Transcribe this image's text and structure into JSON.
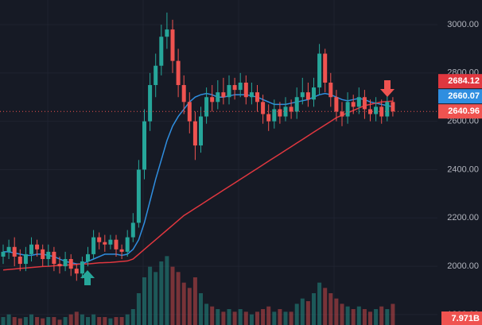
{
  "chart_data": {
    "type": "candlestick",
    "open": [
      2040,
      2060,
      2080,
      2040,
      2010,
      2050,
      2090,
      2070,
      2030,
      2060,
      2010,
      2000,
      2030,
      1990,
      1970,
      2020,
      2050,
      2120,
      2100,
      2090,
      2110,
      2070,
      2060,
      2120,
      2180,
      2400,
      2600,
      2750,
      2830,
      2950,
      2980,
      2850,
      2750,
      2680,
      2600,
      2500,
      2620,
      2700,
      2680,
      2720,
      2700,
      2750,
      2730,
      2760,
      2700,
      2720,
      2680,
      2630,
      2600,
      2650,
      2620,
      2660,
      2640,
      2700,
      2720,
      2690,
      2740,
      2880,
      2760,
      2700,
      2640,
      2620,
      2680,
      2660,
      2700,
      2650,
      2630,
      2660,
      2620,
      2680
    ],
    "high": [
      2090,
      2110,
      2120,
      2070,
      2080,
      2120,
      2110,
      2090,
      2090,
      2080,
      2040,
      2060,
      2050,
      2010,
      2040,
      2080,
      2150,
      2140,
      2130,
      2130,
      2130,
      2090,
      2150,
      2220,
      2440,
      2650,
      2800,
      2880,
      3000,
      3050,
      3020,
      2900,
      2790,
      2720,
      2640,
      2660,
      2740,
      2750,
      2770,
      2780,
      2790,
      2780,
      2800,
      2790,
      2760,
      2750,
      2710,
      2670,
      2690,
      2680,
      2700,
      2690,
      2740,
      2780,
      2760,
      2780,
      2920,
      2900,
      2800,
      2730,
      2680,
      2720,
      2710,
      2740,
      2730,
      2690,
      2700,
      2690,
      2720,
      2700
    ],
    "low": [
      2010,
      2030,
      2000,
      1980,
      1980,
      2020,
      2040,
      2000,
      2000,
      1980,
      1970,
      1980,
      1960,
      1940,
      1950,
      2000,
      2030,
      2070,
      2060,
      2070,
      2040,
      2030,
      2040,
      2100,
      2160,
      2360,
      2560,
      2700,
      2790,
      2900,
      2800,
      2700,
      2630,
      2550,
      2440,
      2470,
      2590,
      2640,
      2650,
      2670,
      2670,
      2690,
      2700,
      2670,
      2670,
      2640,
      2590,
      2560,
      2570,
      2590,
      2600,
      2610,
      2610,
      2670,
      2660,
      2660,
      2710,
      2720,
      2660,
      2600,
      2580,
      2590,
      2630,
      2630,
      2610,
      2600,
      2600,
      2590,
      2600,
      2620
    ],
    "close": [
      2060,
      2080,
      2040,
      2010,
      2050,
      2090,
      2070,
      2030,
      2060,
      2010,
      2000,
      2030,
      1990,
      1970,
      2020,
      2050,
      2120,
      2100,
      2090,
      2110,
      2070,
      2060,
      2120,
      2180,
      2400,
      2600,
      2750,
      2830,
      2950,
      2980,
      2850,
      2750,
      2680,
      2600,
      2500,
      2620,
      2700,
      2680,
      2720,
      2700,
      2750,
      2730,
      2760,
      2700,
      2720,
      2680,
      2630,
      2600,
      2650,
      2620,
      2660,
      2640,
      2700,
      2720,
      2690,
      2740,
      2880,
      2760,
      2700,
      2640,
      2620,
      2680,
      2660,
      2700,
      2650,
      2630,
      2660,
      2620,
      2680,
      2640.96
    ],
    "up_color": "#26a69a",
    "down_color": "#ef5350",
    "moving_averages": [
      {
        "color": "#2f8ee0",
        "values": [
          2060,
          2060,
          2055,
          2050,
          2045,
          2045,
          2050,
          2050,
          2045,
          2040,
          2030,
          2020,
          2015,
          2010,
          2010,
          2020,
          2030,
          2040,
          2050,
          2050,
          2050,
          2045,
          2050,
          2070,
          2110,
          2180,
          2270,
          2360,
          2440,
          2520,
          2580,
          2620,
          2650,
          2680,
          2700,
          2710,
          2715,
          2710,
          2700,
          2700,
          2705,
          2710,
          2710,
          2710,
          2705,
          2700,
          2690,
          2680,
          2670,
          2670,
          2670,
          2675,
          2680,
          2685,
          2690,
          2700,
          2710,
          2715,
          2710,
          2700,
          2690,
          2685,
          2690,
          2695,
          2690,
          2680,
          2675,
          2670,
          2665,
          2660.07
        ]
      },
      {
        "color": "#e0373f",
        "values": [
          1985,
          1987,
          1989,
          1991,
          1993,
          1995,
          1997,
          1999,
          2000,
          2002,
          2004,
          2005,
          2006,
          2008,
          2010,
          2010,
          2012,
          2014,
          2015,
          2016,
          2018,
          2020,
          2022,
          2030,
          2050,
          2070,
          2090,
          2110,
          2130,
          2150,
          2170,
          2190,
          2210,
          2225,
          2240,
          2255,
          2270,
          2285,
          2300,
          2315,
          2330,
          2345,
          2360,
          2375,
          2390,
          2405,
          2420,
          2435,
          2450,
          2465,
          2480,
          2495,
          2510,
          2525,
          2540,
          2555,
          2570,
          2585,
          2600,
          2615,
          2625,
          2635,
          2645,
          2655,
          2665,
          2670,
          2675,
          2680,
          2682,
          2684.12
        ]
      }
    ],
    "volume": {
      "values": [
        3,
        4,
        3,
        2.5,
        3,
        4,
        3,
        2.5,
        3,
        3,
        2,
        3,
        4,
        5,
        4,
        3,
        4,
        3,
        3,
        2.5,
        3,
        3,
        4,
        6,
        12,
        18,
        22,
        20,
        24,
        26,
        22,
        20,
        16,
        14,
        18,
        12,
        8,
        7,
        6,
        5,
        6,
        5,
        6,
        5,
        4,
        5,
        6,
        7,
        5,
        6,
        5,
        5,
        8,
        10,
        9,
        12,
        16,
        14,
        12,
        10,
        8,
        7,
        6,
        7,
        6,
        5,
        6,
        7,
        6,
        7.971
      ],
      "value_labels": [
        null,
        null,
        null,
        null,
        null,
        null,
        null,
        null,
        null,
        null,
        null,
        null,
        null,
        null,
        null,
        null,
        null,
        null,
        null,
        null,
        null,
        null,
        null,
        null,
        null,
        null,
        null,
        null,
        null,
        null,
        null,
        null,
        null,
        null,
        null,
        null,
        null,
        null,
        null,
        null,
        null,
        null,
        null,
        null,
        null,
        null,
        null,
        null,
        null,
        null,
        null,
        null,
        null,
        null,
        null,
        null,
        null,
        null,
        null,
        null,
        null,
        null,
        null,
        null,
        null,
        null,
        null,
        null,
        null,
        "7.971B"
      ],
      "y2lim": [
        0,
        30
      ]
    },
    "ylim": [
      1757,
      3102
    ],
    "yticks": [
      {
        "value": 1800,
        "label": "1800.00"
      },
      {
        "value": 2000,
        "label": "2000.00"
      },
      {
        "value": 2200,
        "label": "2200.00"
      },
      {
        "value": 2400,
        "label": "2400.00"
      },
      {
        "value": 2600,
        "label": "2600.00"
      },
      {
        "value": 2800,
        "label": "2800.00"
      },
      {
        "value": 3000,
        "label": "3000.00"
      }
    ],
    "grid": true
  }
}
